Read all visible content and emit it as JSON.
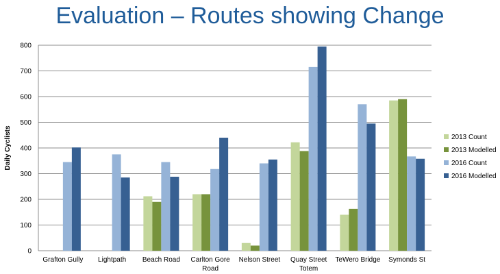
{
  "chart_data": {
    "type": "bar",
    "title": "Evaluation – Routes showing Change",
    "xlabel": "",
    "ylabel": "Daily Cyclists",
    "ylim": [
      0,
      800
    ],
    "yticks": [
      0,
      100,
      200,
      300,
      400,
      500,
      600,
      700,
      800
    ],
    "categories": [
      [
        "Grafton Gully"
      ],
      [
        "Lightpath"
      ],
      [
        "Beach Road"
      ],
      [
        "Carlton Gore",
        "Road"
      ],
      [
        "Nelson Street"
      ],
      [
        "Quay Street",
        "Totem"
      ],
      [
        "TeWero Bridge"
      ],
      [
        "Symonds St"
      ]
    ],
    "series": [
      {
        "name": "2013 Count",
        "color": "#c3d69b",
        "values": [
          0,
          0,
          212,
          220,
          30,
          422,
          140,
          585
        ]
      },
      {
        "name": "2013 Modelled",
        "color": "#77933c",
        "values": [
          0,
          0,
          190,
          220,
          20,
          388,
          163,
          590
        ]
      },
      {
        "name": "2016 Count",
        "color": "#95b3d7",
        "values": [
          345,
          375,
          345,
          318,
          340,
          715,
          570,
          367
        ]
      },
      {
        "name": "2016 Modelled",
        "color": "#376092",
        "values": [
          402,
          285,
          288,
          440,
          355,
          795,
          495,
          358
        ]
      }
    ],
    "grid": true,
    "legend_position": "right"
  }
}
